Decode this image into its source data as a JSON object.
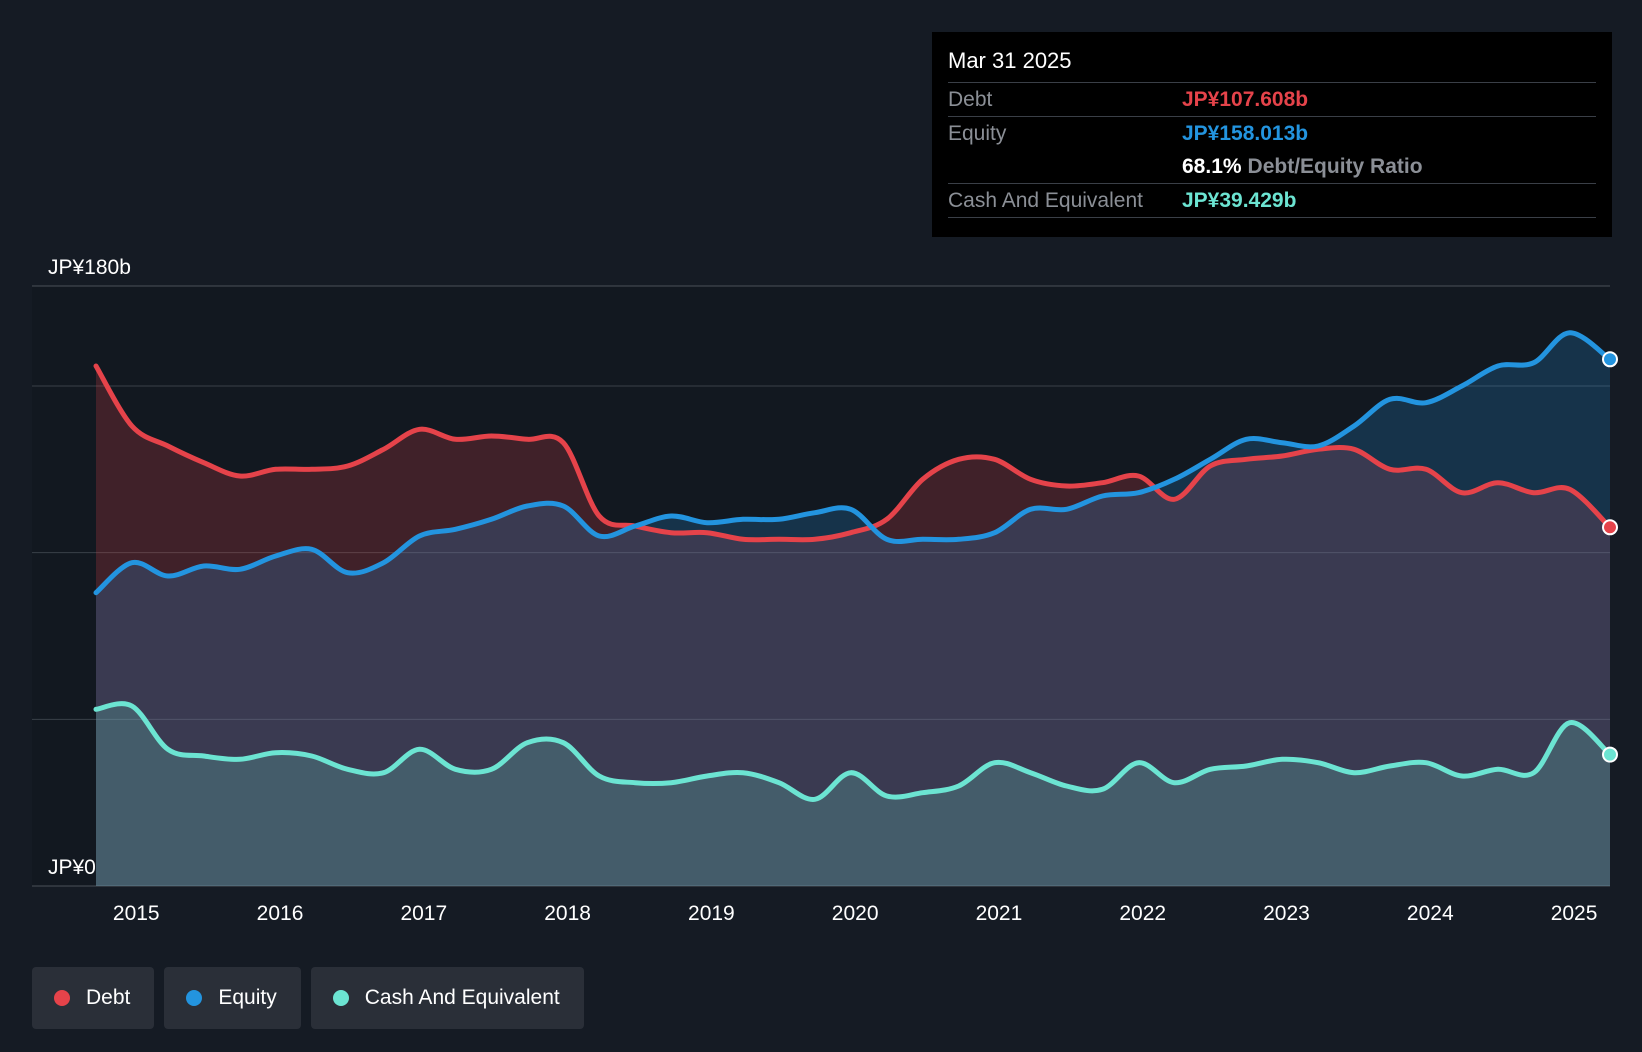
{
  "colors": {
    "debt": "#e5434a",
    "equity": "#2394df",
    "cash": "#6ce4d2",
    "background": "#151b24",
    "grid": "#3a4048",
    "text": "#ffffff"
  },
  "tooltip": {
    "date": "Mar 31 2025",
    "debt_label": "Debt",
    "debt_value": "JP¥107.608b",
    "equity_label": "Equity",
    "equity_value": "JP¥158.013b",
    "ratio_value": "68.1%",
    "ratio_label": "Debt/Equity Ratio",
    "cash_label": "Cash And Equivalent",
    "cash_value": "JP¥39.429b"
  },
  "legend": {
    "debt": "Debt",
    "equity": "Equity",
    "cash": "Cash And Equivalent"
  },
  "chart_data": {
    "type": "area",
    "title": "",
    "xlabel": "",
    "ylabel": "",
    "ylim": [
      0,
      180
    ],
    "y_tick_values": [
      0,
      50,
      100,
      150,
      180
    ],
    "y_tick_labels": [
      "JP¥0",
      "",
      "",
      "",
      "JP¥180b"
    ],
    "x_tick_values": [
      2015,
      2016,
      2017,
      2018,
      2019,
      2020,
      2021,
      2022,
      2023,
      2024,
      2025
    ],
    "x_tick_labels": [
      "2015",
      "2016",
      "2017",
      "2018",
      "2019",
      "2020",
      "2021",
      "2022",
      "2023",
      "2024",
      "2025"
    ],
    "xlim": [
      2014.72,
      2025.25
    ],
    "series": [
      {
        "name": "Debt",
        "key": "debt",
        "x": [
          2014.72,
          2014.97,
          2015.22,
          2015.47,
          2015.72,
          2015.97,
          2016.22,
          2016.47,
          2016.72,
          2016.97,
          2017.22,
          2017.47,
          2017.72,
          2017.97,
          2018.22,
          2018.47,
          2018.72,
          2018.97,
          2019.22,
          2019.47,
          2019.72,
          2019.97,
          2020.22,
          2020.47,
          2020.72,
          2020.97,
          2021.22,
          2021.47,
          2021.72,
          2021.97,
          2022.22,
          2022.47,
          2022.72,
          2022.97,
          2023.22,
          2023.47,
          2023.72,
          2023.97,
          2024.22,
          2024.47,
          2024.72,
          2024.97,
          2025.25
        ],
        "values": [
          156,
          138,
          132,
          127,
          123,
          125,
          125,
          126,
          131,
          137,
          134,
          135,
          134,
          133,
          111,
          108,
          106,
          106,
          104,
          104,
          104,
          106,
          110,
          122,
          128,
          128,
          122,
          120,
          121,
          123,
          116,
          126,
          128,
          129,
          131,
          131,
          125,
          125,
          118,
          121,
          118,
          119,
          107.608
        ]
      },
      {
        "name": "Equity",
        "key": "equity",
        "x": [
          2014.72,
          2014.97,
          2015.22,
          2015.47,
          2015.72,
          2015.97,
          2016.22,
          2016.47,
          2016.72,
          2016.97,
          2017.22,
          2017.47,
          2017.72,
          2017.97,
          2018.22,
          2018.47,
          2018.72,
          2018.97,
          2019.22,
          2019.47,
          2019.72,
          2019.97,
          2020.22,
          2020.47,
          2020.72,
          2020.97,
          2021.22,
          2021.47,
          2021.72,
          2021.97,
          2022.22,
          2022.47,
          2022.72,
          2022.97,
          2023.22,
          2023.47,
          2023.72,
          2023.97,
          2024.22,
          2024.47,
          2024.72,
          2024.97,
          2025.25
        ],
        "values": [
          88,
          97,
          93,
          96,
          95,
          99,
          101,
          94,
          97,
          105,
          107,
          110,
          114,
          114,
          105,
          108,
          111,
          109,
          110,
          110,
          112,
          113,
          104,
          104,
          104,
          106,
          113,
          113,
          117,
          118,
          122,
          128,
          134,
          133,
          132,
          138,
          146,
          145,
          150,
          156,
          157,
          166,
          158.013
        ]
      },
      {
        "name": "Cash And Equivalent",
        "key": "cash",
        "x": [
          2014.72,
          2014.97,
          2015.22,
          2015.47,
          2015.72,
          2015.97,
          2016.22,
          2016.47,
          2016.72,
          2016.97,
          2017.22,
          2017.47,
          2017.72,
          2017.97,
          2018.22,
          2018.47,
          2018.72,
          2018.97,
          2019.22,
          2019.47,
          2019.72,
          2019.97,
          2020.22,
          2020.47,
          2020.72,
          2020.97,
          2021.22,
          2021.47,
          2021.72,
          2021.97,
          2022.22,
          2022.47,
          2022.72,
          2022.97,
          2023.22,
          2023.47,
          2023.72,
          2023.97,
          2024.22,
          2024.47,
          2024.72,
          2024.97,
          2025.25
        ],
        "values": [
          53,
          54,
          41,
          39,
          38,
          40,
          39,
          35,
          34,
          41,
          35,
          35,
          43,
          43,
          33,
          31,
          31,
          33,
          34,
          31,
          26,
          34,
          27,
          28,
          30,
          37,
          34,
          30,
          29,
          37,
          31,
          35,
          36,
          38,
          37,
          34,
          36,
          37,
          33,
          35,
          34,
          49,
          39.429
        ]
      }
    ]
  }
}
